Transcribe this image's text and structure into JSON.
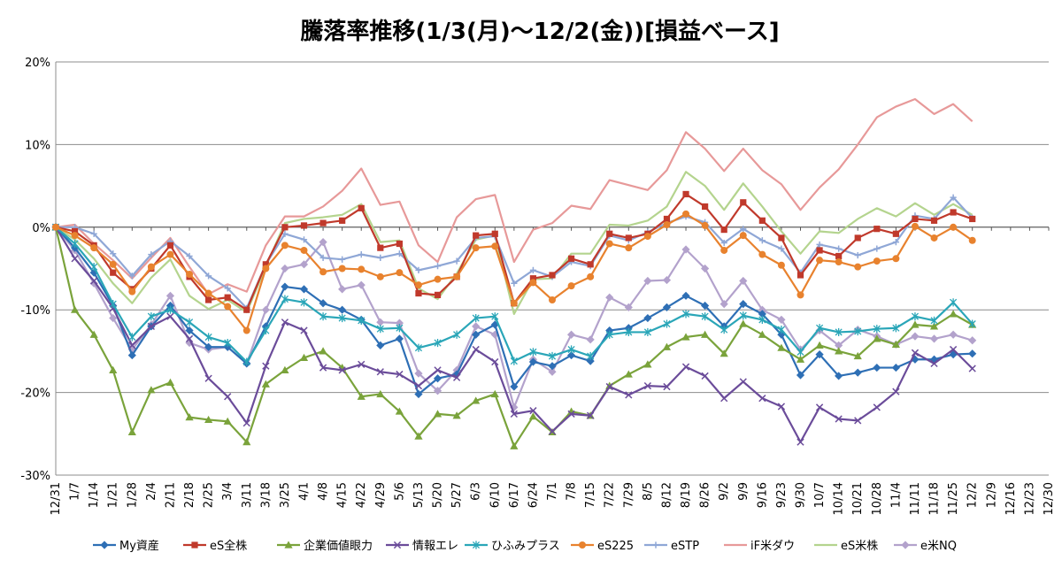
{
  "chart_data": {
    "type": "line",
    "title": "騰落率推移(1/3(月)～12/2(金))[損益ベース]",
    "xlabel": "",
    "ylabel": "",
    "ylim": [
      -30,
      20
    ],
    "yticks": [
      -30,
      -20,
      -10,
      0,
      10,
      20
    ],
    "ytick_labels": [
      "-30%",
      "-20%",
      "-10%",
      "0%",
      "10%",
      "20%"
    ],
    "grid": true,
    "legend_position": "bottom",
    "categories": [
      "12/31",
      "1/7",
      "1/14",
      "1/21",
      "1/28",
      "2/4",
      "2/11",
      "2/18",
      "2/25",
      "3/4",
      "3/11",
      "3/18",
      "3/25",
      "4/1",
      "4/8",
      "4/15",
      "4/22",
      "4/29",
      "5/6",
      "5/13",
      "5/20",
      "5/27",
      "6/3",
      "6/10",
      "6/17",
      "6/24",
      "7/1",
      "7/8",
      "7/15",
      "7/22",
      "7/29",
      "8/5",
      "8/12",
      "8/19",
      "8/26",
      "9/2",
      "9/9",
      "9/16",
      "9/23",
      "9/30",
      "10/7",
      "10/14",
      "10/21",
      "10/28",
      "11/4",
      "11/11",
      "11/18",
      "11/25",
      "12/2",
      "12/9",
      "12/16",
      "12/23",
      "12/30"
    ],
    "series": [
      {
        "name": "My資産",
        "color": "#2e6fb5",
        "marker": "diamond",
        "x": [
          0,
          1,
          2,
          3,
          4,
          5,
          6,
          7,
          8,
          9,
          10,
          11,
          12,
          13,
          14,
          15,
          16,
          17,
          18,
          19,
          20,
          21,
          22,
          23,
          24,
          25,
          26,
          27,
          28,
          29,
          30,
          31,
          32,
          33,
          34,
          35,
          36,
          37,
          38,
          39,
          40,
          41,
          42,
          43,
          44,
          45,
          46,
          47,
          48
        ],
        "values": [
          0,
          -2.5,
          -5.5,
          -9.5,
          -15.5,
          -12,
          -9.5,
          -12.5,
          -14.5,
          -14.5,
          -16.5,
          -12,
          -7.2,
          -7.5,
          -9.2,
          -10,
          -11.2,
          -14.3,
          -13.5,
          -20.2,
          -18.3,
          -17.8,
          -13,
          -11.8,
          -19.3,
          -16.3,
          -16.8,
          -15.5,
          -16.2,
          -12.5,
          -12.2,
          -11,
          -9.7,
          -8.3,
          -9.5,
          -12,
          -9.3,
          -10.5,
          -13,
          -17.9,
          -15.4,
          -18,
          -17.6,
          -17,
          -17,
          -16,
          -16,
          -15.4,
          -15.3
        ]
      },
      {
        "name": "eS全株",
        "color": "#c0392b",
        "marker": "square",
        "x": [
          0,
          1,
          2,
          3,
          4,
          5,
          6,
          7,
          8,
          9,
          10,
          11,
          12,
          13,
          14,
          15,
          16,
          17,
          18,
          19,
          20,
          21,
          22,
          23,
          24,
          25,
          26,
          27,
          28,
          29,
          30,
          31,
          32,
          33,
          34,
          35,
          36,
          37,
          38,
          39,
          40,
          41,
          42,
          43,
          44,
          45,
          46,
          47,
          48
        ],
        "values": [
          0,
          -0.5,
          -2.2,
          -5.5,
          -7.5,
          -5,
          -2.2,
          -6,
          -8.8,
          -8.5,
          -10,
          -4.5,
          0,
          0.2,
          0.5,
          0.8,
          2.3,
          -2.5,
          -2,
          -8,
          -8.2,
          -6,
          -1,
          -0.8,
          -9.2,
          -6.2,
          -5.8,
          -3.8,
          -4.5,
          -0.8,
          -1.3,
          -0.8,
          1,
          4,
          2.5,
          -0.3,
          3,
          0.8,
          -1.3,
          -5.8,
          -2.8,
          -3.5,
          -1.3,
          -0.2,
          -0.8,
          1,
          0.8,
          1.8,
          1
        ]
      },
      {
        "name": "企業価値眼力",
        "color": "#7aa33b",
        "marker": "triangle",
        "x": [
          0,
          1,
          2,
          3,
          4,
          5,
          6,
          7,
          8,
          9,
          10,
          11,
          12,
          13,
          14,
          15,
          16,
          17,
          18,
          19,
          20,
          21,
          22,
          23,
          24,
          25,
          26,
          27,
          28,
          29,
          30,
          31,
          32,
          33,
          34,
          35,
          36,
          37,
          38,
          39,
          40,
          41,
          42,
          43,
          44,
          45,
          46,
          47,
          48
        ],
        "values": [
          0,
          -10,
          -13,
          -17.3,
          -24.8,
          -19.7,
          -18.8,
          -23,
          -23.3,
          -23.5,
          -26,
          -19,
          -17.3,
          -15.8,
          -15,
          -17,
          -20.5,
          -20.2,
          -22.3,
          -25.3,
          -22.6,
          -22.8,
          -21,
          -20.2,
          -26.5,
          -22.9,
          -24.8,
          -22.3,
          -22.8,
          -19.2,
          -17.8,
          -16.6,
          -14.5,
          -13.3,
          -13,
          -15.3,
          -11.7,
          -13,
          -14.6,
          -16,
          -14.3,
          -15,
          -15.6,
          -13.5,
          -14.2,
          -11.8,
          -12,
          -10.5,
          -11.8
        ]
      },
      {
        "name": "情報エレ",
        "color": "#6b4c9a",
        "marker": "x",
        "x": [
          0,
          1,
          2,
          3,
          4,
          5,
          6,
          7,
          8,
          9,
          10,
          11,
          12,
          13,
          14,
          15,
          16,
          17,
          18,
          19,
          20,
          21,
          22,
          23,
          24,
          25,
          26,
          27,
          28,
          29,
          30,
          31,
          32,
          33,
          34,
          35,
          36,
          37,
          38,
          39,
          40,
          41,
          42,
          43,
          44,
          45,
          46,
          47,
          48
        ],
        "values": [
          0,
          -3.8,
          -6.5,
          -9.8,
          -14.3,
          -12,
          -10.8,
          -13.5,
          -18.3,
          -20.5,
          -23.7,
          -16.8,
          -11.5,
          -12.5,
          -17,
          -17.3,
          -16.6,
          -17.5,
          -17.8,
          -19.2,
          -17.3,
          -18.2,
          -14.8,
          -16.3,
          -22.6,
          -22.2,
          -24.7,
          -22.6,
          -22.8,
          -19.3,
          -20.3,
          -19.2,
          -19.3,
          -16.9,
          -18,
          -20.7,
          -18.7,
          -20.7,
          -21.7,
          -26,
          -21.8,
          -23.2,
          -23.4,
          -21.8,
          -19.9,
          -15.2,
          -16.5,
          -14.8,
          -17.1
        ]
      },
      {
        "name": "ひふみプラス",
        "color": "#2aa6b8",
        "marker": "star",
        "x": [
          0,
          1,
          2,
          3,
          4,
          5,
          6,
          7,
          8,
          9,
          10,
          11,
          12,
          13,
          14,
          15,
          16,
          17,
          18,
          19,
          20,
          21,
          22,
          23,
          24,
          25,
          26,
          27,
          28,
          29,
          30,
          31,
          32,
          33,
          34,
          35,
          36,
          37,
          38,
          39,
          40,
          41,
          42,
          43,
          44,
          45,
          46,
          47,
          48
        ],
        "values": [
          0,
          -2,
          -4.8,
          -9.3,
          -13.3,
          -10.8,
          -10,
          -11.5,
          -13.3,
          -14,
          -16.3,
          -12.5,
          -8.7,
          -9.1,
          -10.8,
          -11,
          -11.3,
          -12.3,
          -12.2,
          -14.6,
          -14,
          -13,
          -11,
          -10.8,
          -16.2,
          -15.1,
          -15.6,
          -14.8,
          -15.6,
          -13,
          -12.7,
          -12.7,
          -11.7,
          -10.5,
          -10.8,
          -12.4,
          -10.7,
          -11.2,
          -12.4,
          -15.1,
          -12.2,
          -12.7,
          -12.6,
          -12.3,
          -12.2,
          -10.8,
          -11.3,
          -9.1,
          -11.7
        ]
      },
      {
        "name": "eS225",
        "color": "#e8822e",
        "marker": "circle",
        "x": [
          0,
          1,
          2,
          3,
          4,
          5,
          6,
          7,
          8,
          9,
          10,
          11,
          12,
          13,
          14,
          15,
          16,
          17,
          18,
          19,
          20,
          21,
          22,
          23,
          24,
          25,
          26,
          27,
          28,
          29,
          30,
          31,
          32,
          33,
          34,
          35,
          36,
          37,
          38,
          39,
          40,
          41,
          42,
          43,
          44,
          45,
          46,
          47,
          48
        ],
        "values": [
          0,
          -1,
          -2.5,
          -4.5,
          -7.8,
          -4.8,
          -3.3,
          -5.7,
          -8,
          -9.6,
          -12.5,
          -5,
          -2.2,
          -2.8,
          -5.4,
          -5,
          -5.1,
          -6,
          -5.5,
          -7,
          -6.3,
          -6,
          -2.5,
          -2.3,
          -9.2,
          -6.7,
          -8.8,
          -7.1,
          -6,
          -2,
          -2.5,
          -1.1,
          0.3,
          1.6,
          0.2,
          -2.8,
          -1,
          -3.3,
          -4.6,
          -8.2,
          -4,
          -4.2,
          -4.8,
          -4.1,
          -3.8,
          0.1,
          -1.3,
          0,
          -1.6
        ]
      },
      {
        "name": "eSTP",
        "color": "#8fa7d6",
        "marker": "plus",
        "x": [
          0,
          1,
          2,
          3,
          4,
          5,
          6,
          7,
          8,
          9,
          10,
          11,
          12,
          13,
          14,
          15,
          16,
          17,
          18,
          19,
          20,
          21,
          22,
          23,
          24,
          25,
          26,
          27,
          28,
          29,
          30,
          31,
          32,
          33,
          34,
          35,
          36,
          37,
          38,
          39,
          40,
          41,
          42,
          43,
          44,
          45,
          46,
          47,
          48
        ],
        "values": [
          0,
          0,
          -0.8,
          -3.2,
          -5.9,
          -3.3,
          -1.7,
          -3.5,
          -5.9,
          -7.4,
          -9.8,
          -4.5,
          -0.8,
          -1.5,
          -3.7,
          -3.9,
          -3.3,
          -3.7,
          -3.2,
          -5.2,
          -4.7,
          -4.1,
          -1.3,
          -1.1,
          -6.8,
          -5.2,
          -6,
          -4.2,
          -4.7,
          -1,
          -1.6,
          -0.6,
          0.5,
          1.3,
          0.6,
          -1.9,
          -0.2,
          -1.6,
          -2.6,
          -5.5,
          -2.1,
          -2.6,
          -3.4,
          -2.6,
          -1.8,
          1.4,
          1,
          3.6,
          1.1
        ]
      },
      {
        "name": "iF米ダウ",
        "color": "#e79999",
        "marker": "none",
        "x": [
          0,
          1,
          2,
          3,
          4,
          5,
          6,
          7,
          8,
          9,
          10,
          11,
          12,
          13,
          14,
          15,
          16,
          17,
          18,
          19,
          20,
          21,
          22,
          23,
          24,
          25,
          26,
          27,
          28,
          29,
          30,
          31,
          32,
          33,
          34,
          35,
          36,
          37,
          38,
          39,
          40,
          41,
          42,
          43,
          44,
          45,
          46,
          47,
          48
        ],
        "values": [
          0,
          0.3,
          -2,
          -4,
          -6.2,
          -3.7,
          -1.3,
          -4.8,
          -8.1,
          -6.9,
          -7.8,
          -2.2,
          1.3,
          1.3,
          2.5,
          4.4,
          7.1,
          2.7,
          3.1,
          -2.2,
          -4.2,
          1.2,
          3.4,
          3.9,
          -4.2,
          -0.3,
          0.5,
          2.6,
          2.2,
          5.7,
          5.1,
          4.5,
          6.9,
          11.5,
          9.5,
          6.8,
          9.5,
          6.9,
          5.2,
          2.1,
          4.8,
          7,
          10,
          13.3,
          14.6,
          15.5,
          13.7,
          14.9,
          12.8
        ]
      },
      {
        "name": "eS米株",
        "color": "#b4d48e",
        "marker": "none",
        "x": [
          0,
          1,
          2,
          3,
          4,
          5,
          6,
          7,
          8,
          9,
          10,
          11,
          12,
          13,
          14,
          15,
          16,
          17,
          18,
          19,
          20,
          21,
          22,
          23,
          24,
          25,
          26,
          27,
          28,
          29,
          30,
          31,
          32,
          33,
          34,
          35,
          36,
          37,
          38,
          39,
          40,
          41,
          42,
          43,
          44,
          45,
          46,
          47,
          48
        ],
        "values": [
          0,
          -1.5,
          -3.8,
          -6.8,
          -9.2,
          -6.1,
          -3.9,
          -8.3,
          -9.9,
          -8.8,
          -10.3,
          -4.8,
          0.5,
          1,
          1.2,
          1.5,
          2.8,
          -1.8,
          -1.6,
          -7.4,
          -8.7,
          -5.6,
          -1.5,
          -1,
          -10.5,
          -6.3,
          -6.2,
          -3.2,
          -3.2,
          0.3,
          0.2,
          0.8,
          2.5,
          6.7,
          5,
          2.1,
          5.3,
          2.5,
          -0.5,
          -3.2,
          -0.5,
          -0.7,
          1,
          2.3,
          1.3,
          2.9,
          1.5,
          2.8,
          1.5
        ]
      },
      {
        "name": "e米NQ",
        "color": "#b3a2cc",
        "marker": "diamond",
        "x": [
          0,
          1,
          2,
          3,
          4,
          5,
          6,
          7,
          8,
          9,
          10,
          11,
          12,
          13,
          14,
          15,
          16,
          17,
          18,
          19,
          20,
          21,
          22,
          23,
          24,
          25,
          26,
          27,
          28,
          29,
          30,
          31,
          32,
          33,
          34,
          35,
          36,
          37,
          38,
          39,
          40,
          41,
          42,
          43,
          44,
          45,
          46,
          47,
          48
        ],
        "values": [
          0,
          -2.8,
          -6.8,
          -11,
          -14.8,
          -11.8,
          -8.3,
          -14,
          -14.8,
          -14.5,
          -16.5,
          -10,
          -5,
          -4.5,
          -1.8,
          -7.5,
          -7,
          -11.5,
          -11.6,
          -17.7,
          -19.8,
          -17.3,
          -12,
          -13,
          -21.8,
          -16,
          -17.5,
          -13,
          -13.6,
          -8.5,
          -9.7,
          -6.5,
          -6.4,
          -2.7,
          -5,
          -9.3,
          -6.5,
          -10,
          -11.2,
          -14.8,
          -12.5,
          -14.3,
          -12.4,
          -13.2,
          -14.2,
          -13.2,
          -13.5,
          -13,
          -13.7
        ]
      }
    ]
  }
}
